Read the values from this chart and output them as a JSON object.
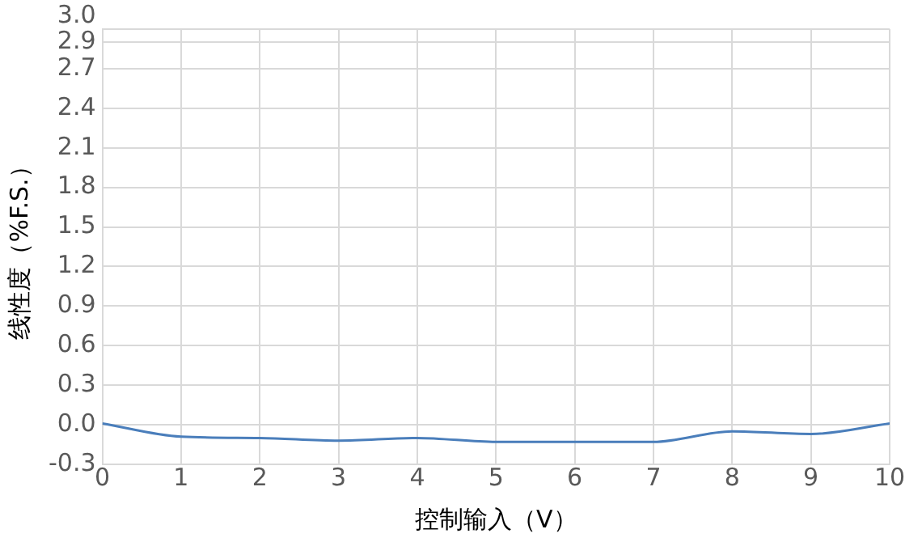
{
  "chart_data": {
    "type": "line",
    "xlabel": "控制输入（V）",
    "ylabel": "线性度（%F.S.）",
    "x": [
      0,
      1,
      2,
      3,
      4,
      5,
      6,
      7,
      8,
      9,
      10
    ],
    "series": [
      {
        "color": "#4a7ebb",
        "values": [
          0.01,
          -0.09,
          -0.1,
          -0.12,
          -0.1,
          -0.13,
          -0.13,
          -0.13,
          -0.05,
          -0.07,
          0.01
        ]
      }
    ],
    "xlim": [
      0,
      10
    ],
    "xticks": [
      0,
      1,
      2,
      3,
      4,
      5,
      6,
      7,
      8,
      9,
      10
    ],
    "ylim": [
      -0.3,
      3.0
    ],
    "yticks": [
      -0.3,
      {
        "value": 0,
        "label": "0.0"
      },
      0.3,
      0.6,
      0.9,
      1.2,
      1.5,
      1.8,
      2.1,
      2.4,
      2.7,
      2.9,
      {
        "value": 3,
        "label": "3.0"
      }
    ],
    "grid": true,
    "legend": false,
    "marker": "none",
    "line_style": "solid"
  }
}
